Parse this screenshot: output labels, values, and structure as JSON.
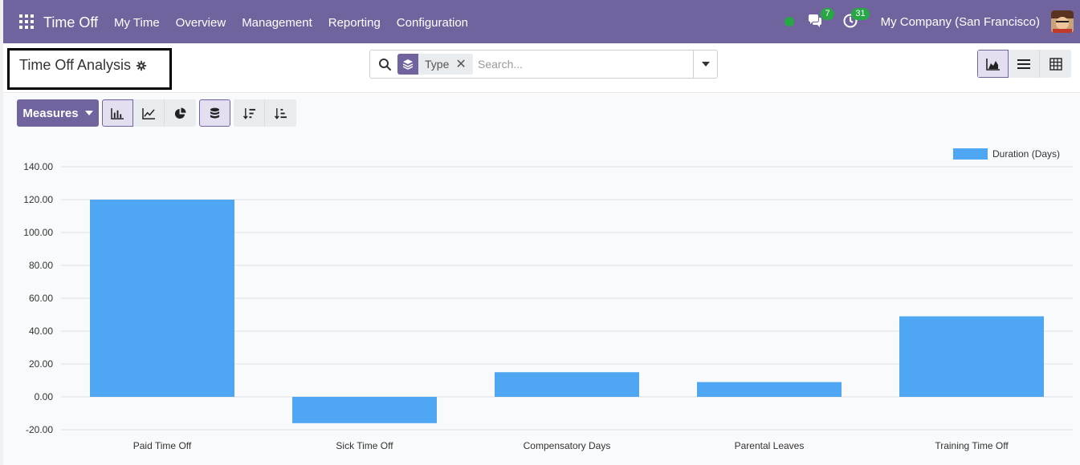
{
  "navbar": {
    "brand": "Time Off",
    "menu": [
      "My Time",
      "Overview",
      "Management",
      "Reporting",
      "Configuration"
    ],
    "messages_count": "7",
    "activities_count": "31",
    "company": "My Company (San Francisco)"
  },
  "control": {
    "title": "Time Off Analysis",
    "facet_label": "Type",
    "facet_close": "✕",
    "search_placeholder": "Search..."
  },
  "toolbar": {
    "measures_label": "Measures"
  },
  "colors": {
    "brand": "#71639e",
    "bar": "#4fa6f2",
    "badge": "#28a745"
  },
  "chart_data": {
    "type": "bar",
    "categories": [
      "Paid Time Off",
      "Sick Time Off",
      "Compensatory Days",
      "Parental Leaves",
      "Training Time Off"
    ],
    "series": [
      {
        "name": "Duration (Days)",
        "values": [
          120,
          -16,
          15,
          9,
          49
        ]
      }
    ],
    "yticks": [
      "140.00",
      "120.00",
      "100.00",
      "80.00",
      "60.00",
      "40.00",
      "20.00",
      "0.00",
      "-20.00"
    ],
    "ylim": [
      -20,
      140
    ],
    "grid": true,
    "legend": "top-right",
    "title": "",
    "xlabel": "",
    "ylabel": ""
  }
}
